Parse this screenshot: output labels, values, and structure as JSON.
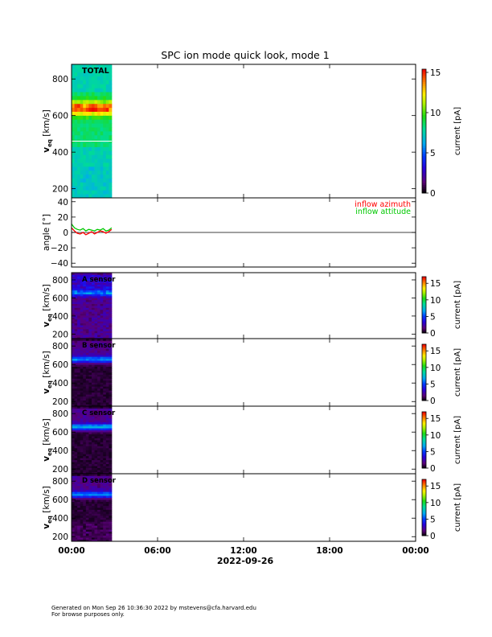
{
  "chart_data": [
    {
      "type": "heatmap",
      "panel": "total",
      "title": "SPC ion mode quick look, mode 1",
      "label": "TOTAL",
      "ylabel": "v",
      "ylabel_sub": "eq",
      "ylabel_unit": "[km/s]",
      "ylim": [
        150,
        880
      ],
      "yticks": [
        200,
        400,
        600,
        800
      ],
      "colorbar": {
        "label": "current [pA]",
        "range": [
          0,
          15.4
        ],
        "ticks": [
          0,
          5,
          10,
          15
        ]
      },
      "data_time_range_hours": [
        0,
        2.8
      ],
      "features": {
        "peak_speed_band_km_s": [
          580,
          700
        ],
        "peak_current_pA": 12
      }
    },
    {
      "type": "line",
      "panel": "angle",
      "ylabel": "angle [°]",
      "ylim": [
        -45,
        45
      ],
      "yticks": [
        -40,
        -20,
        0,
        20,
        40
      ],
      "series": [
        {
          "name": "inflow azimuth",
          "color": "#ff0000",
          "x": [
            0,
            0.2,
            0.4,
            0.6,
            0.8,
            1.0,
            1.2,
            1.4,
            1.6,
            1.8,
            2.0,
            2.2,
            2.4,
            2.6,
            2.8
          ],
          "y": [
            6,
            2,
            -1,
            -2,
            0,
            -3,
            -1,
            1,
            -2,
            0,
            2,
            1,
            -1,
            1,
            4
          ]
        },
        {
          "name": "inflow attitude",
          "color": "#00c800",
          "x": [
            0,
            0.2,
            0.4,
            0.6,
            0.8,
            1.0,
            1.2,
            1.4,
            1.6,
            1.8,
            2.0,
            2.2,
            2.4,
            2.6,
            2.8
          ],
          "y": [
            11,
            6,
            4,
            3,
            5,
            2,
            4,
            3,
            2,
            4,
            3,
            5,
            2,
            3,
            6
          ]
        }
      ]
    },
    {
      "type": "heatmap",
      "panel": "sensor-a",
      "label": "A sensor",
      "ylabel": "v",
      "ylabel_sub": "eq",
      "ylabel_unit": "[km/s]",
      "ylim": [
        150,
        880
      ],
      "yticks": [
        200,
        400,
        600,
        800
      ],
      "colorbar": {
        "label": "current [pA]",
        "range": [
          0,
          17
        ],
        "ticks": [
          0,
          5,
          10,
          15
        ]
      }
    },
    {
      "type": "heatmap",
      "panel": "sensor-b",
      "label": "B sensor",
      "ylabel": "v",
      "ylabel_sub": "eq",
      "ylabel_unit": "[km/s]",
      "ylim": [
        150,
        880
      ],
      "yticks": [
        200,
        400,
        600,
        800
      ],
      "colorbar": {
        "label": "current [pA]",
        "range": [
          0,
          17
        ],
        "ticks": [
          0,
          5,
          10,
          15
        ]
      }
    },
    {
      "type": "heatmap",
      "panel": "sensor-c",
      "label": "C sensor",
      "ylabel": "v",
      "ylabel_sub": "eq",
      "ylabel_unit": "[km/s]",
      "ylim": [
        150,
        880
      ],
      "yticks": [
        200,
        400,
        600,
        800
      ],
      "colorbar": {
        "label": "current [pA]",
        "range": [
          0,
          17
        ],
        "ticks": [
          0,
          5,
          10,
          15
        ]
      }
    },
    {
      "type": "heatmap",
      "panel": "sensor-d",
      "label": "D sensor",
      "ylabel": "v",
      "ylabel_sub": "eq",
      "ylabel_unit": "[km/s]",
      "ylim": [
        150,
        880
      ],
      "yticks": [
        200,
        400,
        600,
        800
      ],
      "colorbar": {
        "label": "current [pA]",
        "range": [
          0,
          17
        ],
        "ticks": [
          0,
          5,
          10,
          15
        ]
      }
    }
  ],
  "time_axis": {
    "ticks": [
      "00:00",
      "06:00",
      "12:00",
      "18:00",
      "00:00"
    ],
    "tick_hours": [
      0,
      6,
      12,
      18,
      24
    ],
    "date_label": "2022-09-26"
  },
  "footer": {
    "line1": "Generated on Mon Sep 26 10:36:30 2022 by mstevens@cfa.harvard.edu",
    "line2": "For browse purposes only."
  }
}
